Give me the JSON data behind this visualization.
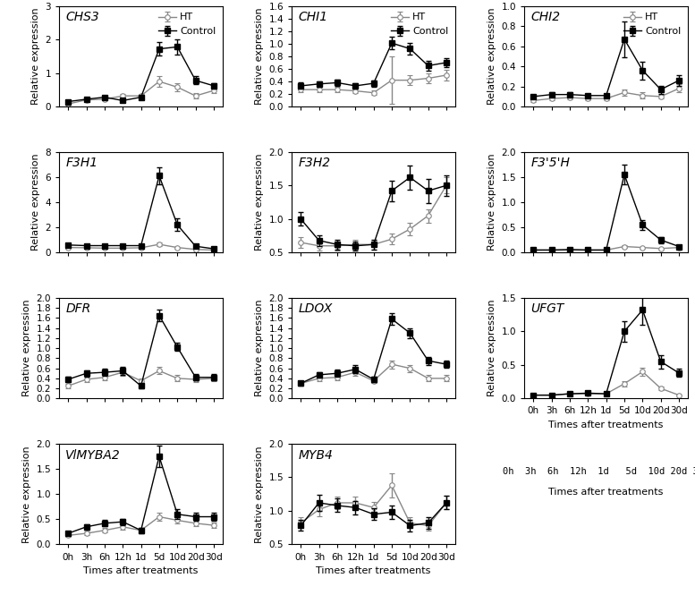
{
  "x_labels": [
    "0h",
    "3h",
    "6h",
    "12h",
    "1d",
    "5d",
    "10d",
    "20d",
    "30d"
  ],
  "x_vals": [
    0,
    1,
    2,
    3,
    4,
    5,
    6,
    7,
    8
  ],
  "panels": [
    {
      "title": "CHS3",
      "ylabel": "Relative expression",
      "ylim": [
        0,
        3
      ],
      "yticks": [
        0,
        1,
        2,
        3
      ],
      "control_y": [
        0.15,
        0.22,
        0.28,
        0.18,
        0.28,
        1.72,
        1.78,
        0.78,
        0.62
      ],
      "ht_y": [
        0.08,
        0.2,
        0.22,
        0.32,
        0.32,
        0.75,
        0.58,
        0.32,
        0.48
      ],
      "control_err": [
        0.05,
        0.04,
        0.05,
        0.04,
        0.05,
        0.2,
        0.22,
        0.12,
        0.08
      ],
      "ht_err": [
        0.03,
        0.04,
        0.04,
        0.05,
        0.06,
        0.15,
        0.12,
        0.08,
        0.08
      ],
      "legend": true,
      "show_xlabel": false,
      "row": 0,
      "col": 0
    },
    {
      "title": "CHI1",
      "ylabel": "Relative expression",
      "ylim": [
        0.0,
        1.6
      ],
      "yticks": [
        0.0,
        0.2,
        0.4,
        0.6,
        0.8,
        1.0,
        1.2,
        1.4,
        1.6
      ],
      "control_y": [
        0.33,
        0.36,
        0.38,
        0.33,
        0.37,
        1.01,
        0.92,
        0.65,
        0.7
      ],
      "ht_y": [
        0.27,
        0.27,
        0.27,
        0.25,
        0.22,
        0.42,
        0.42,
        0.45,
        0.5
      ],
      "control_err": [
        0.05,
        0.04,
        0.05,
        0.04,
        0.05,
        0.1,
        0.09,
        0.08,
        0.07
      ],
      "ht_err": [
        0.04,
        0.04,
        0.04,
        0.04,
        0.04,
        0.38,
        0.08,
        0.08,
        0.08
      ],
      "legend": true,
      "show_xlabel": false,
      "row": 0,
      "col": 1
    },
    {
      "title": "CHI2",
      "ylabel": "Relative expression",
      "ylim": [
        0.0,
        1.0
      ],
      "yticks": [
        0.0,
        0.2,
        0.4,
        0.6,
        0.8,
        1.0
      ],
      "control_y": [
        0.1,
        0.12,
        0.12,
        0.11,
        0.11,
        0.67,
        0.36,
        0.17,
        0.26
      ],
      "ht_y": [
        0.06,
        0.08,
        0.09,
        0.08,
        0.08,
        0.14,
        0.11,
        0.1,
        0.18
      ],
      "control_err": [
        0.02,
        0.02,
        0.02,
        0.02,
        0.02,
        0.18,
        0.09,
        0.04,
        0.05
      ],
      "ht_err": [
        0.01,
        0.02,
        0.02,
        0.02,
        0.02,
        0.03,
        0.03,
        0.02,
        0.04
      ],
      "legend": true,
      "show_xlabel": false,
      "row": 0,
      "col": 2
    },
    {
      "title": "F3H1",
      "ylabel": "Relative expression",
      "ylim": [
        0,
        8
      ],
      "yticks": [
        0,
        2,
        4,
        6,
        8
      ],
      "control_y": [
        0.6,
        0.55,
        0.55,
        0.55,
        0.55,
        6.1,
        2.2,
        0.5,
        0.3
      ],
      "ht_y": [
        0.4,
        0.38,
        0.35,
        0.35,
        0.38,
        0.65,
        0.4,
        0.25,
        0.2
      ],
      "control_err": [
        0.1,
        0.08,
        0.08,
        0.08,
        0.08,
        0.7,
        0.5,
        0.12,
        0.07
      ],
      "ht_err": [
        0.07,
        0.06,
        0.06,
        0.06,
        0.06,
        0.12,
        0.08,
        0.06,
        0.05
      ],
      "legend": false,
      "show_xlabel": false,
      "row": 1,
      "col": 0
    },
    {
      "title": "F3H2",
      "ylabel": "Relative expression",
      "ylim": [
        0.5,
        2.0
      ],
      "yticks": [
        0.5,
        1.0,
        1.5,
        2.0
      ],
      "control_y": [
        1.0,
        0.68,
        0.62,
        0.6,
        0.62,
        1.42,
        1.62,
        1.42,
        1.5
      ],
      "ht_y": [
        0.65,
        0.6,
        0.6,
        0.62,
        0.62,
        0.7,
        0.85,
        1.05,
        1.5
      ],
      "control_err": [
        0.1,
        0.08,
        0.07,
        0.07,
        0.07,
        0.15,
        0.18,
        0.18,
        0.15
      ],
      "ht_err": [
        0.08,
        0.07,
        0.07,
        0.07,
        0.07,
        0.08,
        0.09,
        0.1,
        0.12
      ],
      "legend": false,
      "show_xlabel": false,
      "row": 1,
      "col": 1
    },
    {
      "title": "F3'5'H",
      "ylabel": "Relative expression",
      "ylim": [
        0,
        2.0
      ],
      "yticks": [
        0.0,
        0.5,
        1.0,
        1.5,
        2.0
      ],
      "control_y": [
        0.05,
        0.05,
        0.06,
        0.05,
        0.05,
        1.55,
        0.55,
        0.25,
        0.12
      ],
      "ht_y": [
        0.05,
        0.05,
        0.05,
        0.05,
        0.05,
        0.12,
        0.1,
        0.08,
        0.1
      ],
      "control_err": [
        0.01,
        0.01,
        0.01,
        0.01,
        0.01,
        0.2,
        0.1,
        0.06,
        0.03
      ],
      "ht_err": [
        0.01,
        0.01,
        0.01,
        0.01,
        0.01,
        0.03,
        0.02,
        0.02,
        0.02
      ],
      "legend": false,
      "show_xlabel": false,
      "row": 1,
      "col": 2
    },
    {
      "title": "DFR",
      "ylabel": "Relative expression",
      "ylim": [
        0.0,
        2.0
      ],
      "yticks": [
        0.0,
        0.2,
        0.4,
        0.6,
        0.8,
        1.0,
        1.2,
        1.4,
        1.6,
        1.8,
        2.0
      ],
      "control_y": [
        0.38,
        0.5,
        0.52,
        0.55,
        0.25,
        1.65,
        1.02,
        0.42,
        0.42
      ],
      "ht_y": [
        0.25,
        0.38,
        0.42,
        0.52,
        0.35,
        0.55,
        0.4,
        0.38,
        0.4
      ],
      "control_err": [
        0.05,
        0.06,
        0.07,
        0.08,
        0.04,
        0.12,
        0.08,
        0.06,
        0.06
      ],
      "ht_err": [
        0.04,
        0.05,
        0.06,
        0.07,
        0.05,
        0.07,
        0.06,
        0.05,
        0.05
      ],
      "legend": false,
      "show_xlabel": false,
      "row": 2,
      "col": 0
    },
    {
      "title": "LDOX",
      "ylabel": "Relative expression",
      "ylim": [
        0.0,
        2.0
      ],
      "yticks": [
        0.0,
        0.2,
        0.4,
        0.6,
        0.8,
        1.0,
        1.2,
        1.4,
        1.6,
        1.8,
        2.0
      ],
      "control_y": [
        0.3,
        0.47,
        0.5,
        0.58,
        0.38,
        1.58,
        1.3,
        0.75,
        0.68
      ],
      "ht_y": [
        0.3,
        0.4,
        0.42,
        0.52,
        0.35,
        0.68,
        0.6,
        0.4,
        0.4
      ],
      "control_err": [
        0.04,
        0.06,
        0.07,
        0.08,
        0.05,
        0.12,
        0.1,
        0.08,
        0.07
      ],
      "ht_err": [
        0.04,
        0.05,
        0.06,
        0.07,
        0.05,
        0.08,
        0.07,
        0.06,
        0.06
      ],
      "legend": false,
      "show_xlabel": false,
      "row": 2,
      "col": 1
    },
    {
      "title": "UFGT",
      "ylabel": "Relative expression",
      "ylim": [
        0,
        1.5
      ],
      "yticks": [
        0.0,
        0.5,
        1.0,
        1.5
      ],
      "control_y": [
        0.05,
        0.05,
        0.07,
        0.08,
        0.07,
        1.0,
        1.32,
        0.55,
        0.38
      ],
      "ht_y": [
        0.05,
        0.05,
        0.07,
        0.07,
        0.07,
        0.22,
        0.4,
        0.15,
        0.05
      ],
      "control_err": [
        0.01,
        0.01,
        0.01,
        0.01,
        0.01,
        0.15,
        0.22,
        0.1,
        0.06
      ],
      "ht_err": [
        0.01,
        0.01,
        0.01,
        0.01,
        0.01,
        0.04,
        0.06,
        0.03,
        0.01
      ],
      "legend": false,
      "show_xlabel": true,
      "row": 2,
      "col": 2
    },
    {
      "title": "VlMYBA2",
      "ylabel": "Relative expression",
      "ylim": [
        0,
        2.0
      ],
      "yticks": [
        0.0,
        0.5,
        1.0,
        1.5,
        2.0
      ],
      "control_y": [
        0.22,
        0.35,
        0.42,
        0.45,
        0.28,
        1.75,
        0.6,
        0.55,
        0.55
      ],
      "ht_y": [
        0.18,
        0.22,
        0.28,
        0.35,
        0.28,
        0.55,
        0.48,
        0.42,
        0.38
      ],
      "control_err": [
        0.04,
        0.05,
        0.06,
        0.06,
        0.05,
        0.22,
        0.1,
        0.08,
        0.08
      ],
      "ht_err": [
        0.03,
        0.04,
        0.04,
        0.05,
        0.04,
        0.08,
        0.07,
        0.06,
        0.06
      ],
      "legend": false,
      "show_xlabel": true,
      "row": 3,
      "col": 0
    },
    {
      "title": "MYB4",
      "ylabel": "Relative expression",
      "ylim": [
        0.5,
        2.0
      ],
      "yticks": [
        0.5,
        1.0,
        1.5,
        2.0
      ],
      "control_y": [
        0.78,
        1.12,
        1.08,
        1.05,
        0.95,
        0.98,
        0.78,
        0.82,
        1.12
      ],
      "ht_y": [
        0.82,
        1.02,
        1.12,
        1.12,
        1.05,
        1.38,
        0.82,
        0.78,
        1.12
      ],
      "control_err": [
        0.08,
        0.12,
        0.1,
        0.1,
        0.09,
        0.1,
        0.09,
        0.09,
        0.1
      ],
      "ht_err": [
        0.08,
        0.1,
        0.09,
        0.09,
        0.08,
        0.18,
        0.08,
        0.08,
        0.1
      ],
      "legend": false,
      "show_xlabel": true,
      "row": 3,
      "col": 1
    }
  ],
  "control_color": "#000000",
  "ht_color": "#888888",
  "marker_control": "s",
  "marker_ht": "o",
  "markersize": 4,
  "linewidth": 1.0,
  "fontsize_title": 10,
  "fontsize_label": 8,
  "fontsize_tick": 7.5,
  "fontsize_legend": 8,
  "xlabel": "Times after treatments"
}
